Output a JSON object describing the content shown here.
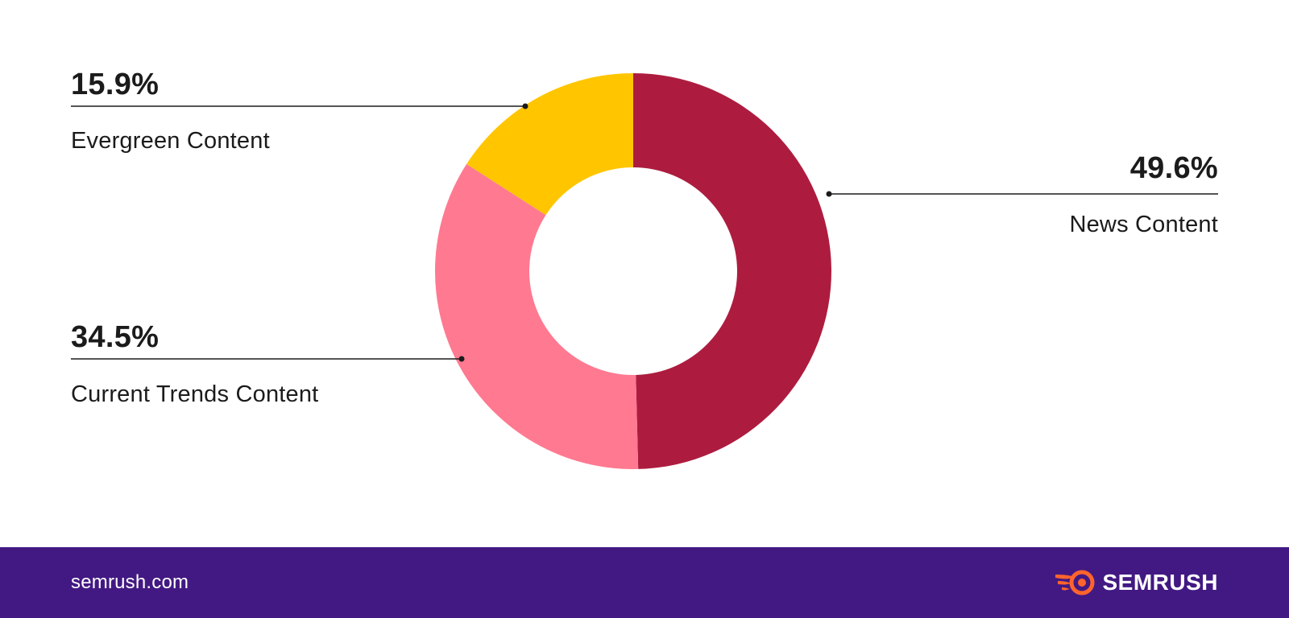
{
  "chart_data": {
    "type": "pie",
    "variant": "donut",
    "title": "",
    "slices": [
      {
        "label": "News Content",
        "value": 49.6,
        "display": "49.6%",
        "color": "#ad1c3f"
      },
      {
        "label": "Current Trends Content",
        "value": 34.5,
        "display": "34.5%",
        "color": "#ff7991"
      },
      {
        "label": "Evergreen Content",
        "value": 15.9,
        "display": "15.9%",
        "color": "#ffc600"
      }
    ]
  },
  "footer": {
    "site": "semrush.com",
    "brand": "SEMRUSH",
    "brand_icon": "semrush-fire-icon",
    "background": "#421983",
    "icon_color": "#ff642d"
  }
}
